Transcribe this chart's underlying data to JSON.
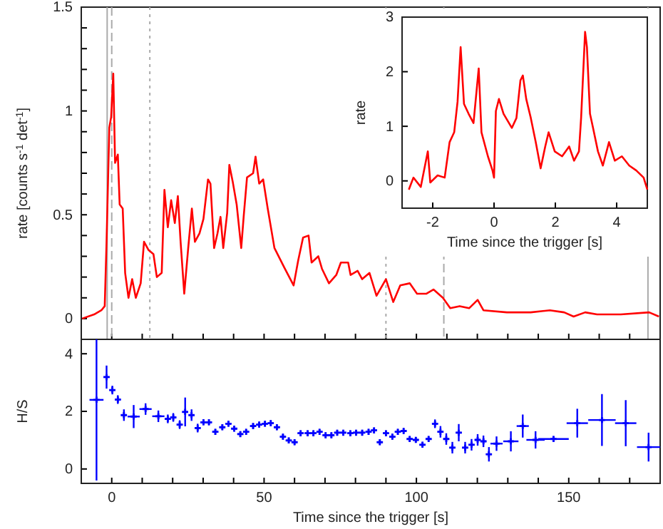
{
  "chart_data": [
    {
      "type": "line",
      "color": "#ff0000",
      "ylabel": "rate [counts s$^{-1}$ det$^{-1}$]",
      "tick_labels": "y",
      "xlim": [
        -10,
        180
      ],
      "ylim": [
        -0.1,
        1.5
      ],
      "xticks": [
        {
          "value": 0,
          "label": null
        },
        {
          "value": 10,
          "label": null
        },
        {
          "value": 20,
          "label": null
        },
        {
          "value": 30,
          "label": null
        },
        {
          "value": 40,
          "label": null
        },
        {
          "value": 50,
          "label": null
        },
        {
          "value": 60,
          "label": null
        },
        {
          "value": 70,
          "label": null
        },
        {
          "value": 80,
          "label": null
        },
        {
          "value": 90,
          "label": null
        },
        {
          "value": 100,
          "label": null
        },
        {
          "value": 110,
          "label": null
        },
        {
          "value": 120,
          "label": null
        },
        {
          "value": 130,
          "label": null
        },
        {
          "value": 140,
          "label": null
        },
        {
          "value": 150,
          "label": null
        },
        {
          "value": 160,
          "label": null
        },
        {
          "value": 170,
          "label": null
        }
      ],
      "yticks": [
        0,
        {
          "value": 0.1,
          "label": null
        },
        {
          "value": 0.2,
          "label": null
        },
        {
          "value": 0.3,
          "label": null
        },
        {
          "value": 0.4,
          "label": null
        },
        0.5,
        {
          "value": 0.6,
          "label": null
        },
        {
          "value": 0.7,
          "label": null
        },
        {
          "value": 0.8,
          "label": null
        },
        {
          "value": 0.9,
          "label": null
        },
        1,
        {
          "value": 1.1,
          "label": null
        },
        {
          "value": 1.2,
          "label": null
        },
        {
          "value": 1.3,
          "label": null
        },
        {
          "value": 1.4,
          "label": null
        },
        1.5
      ],
      "ref_lines": [
        {
          "axis": "x",
          "value": -1.5,
          "label": null,
          "color": "#aaaaaa",
          "line_style": "solid"
        },
        {
          "axis": "x",
          "value": 0,
          "label": null,
          "color": "#aaaaaa",
          "line_style": "dashed"
        },
        {
          "axis": "x",
          "value": 12.5,
          "label": null,
          "color": "#aaaaaa",
          "line_style": "dotted"
        },
        {
          "axis": "x",
          "value": 90,
          "label": null,
          "color": "#aaaaaa",
          "line_style": "dotted"
        },
        {
          "axis": "x",
          "value": 109,
          "label": null,
          "color": "#aaaaaa",
          "line_style": "dashed"
        },
        {
          "axis": "x",
          "value": 176,
          "label": null,
          "color": "#aaaaaa",
          "line_style": "solid"
        }
      ],
      "x": [
        -9.7,
        -5.8,
        -3.4,
        -2.3,
        -1.7,
        -0.8,
        -0.2,
        0.5,
        1.1,
        2.0,
        2.6,
        3.6,
        4.4,
        5.5,
        6.7,
        7.9,
        9.5,
        10.6,
        12.1,
        13.7,
        14.8,
        16.4,
        17.3,
        18.4,
        19.5,
        20.7,
        21.7,
        22.6,
        23.8,
        25.1,
        26.3,
        27.3,
        28.8,
        30.1,
        31.6,
        32.4,
        33.6,
        34.7,
        35.7,
        36.6,
        37.9,
        38.6,
        39.7,
        41.0,
        42.5,
        43.3,
        44.4,
        46.4,
        47.2,
        48.4,
        49.7,
        51.2,
        53.4,
        56.5,
        59.7,
        61.2,
        62.8,
        64.6,
        65.6,
        67.8,
        69.0,
        71.3,
        73.7,
        75.2,
        77.6,
        78.4,
        80.7,
        82.2,
        84.6,
        86.9,
        90.0,
        92.4,
        94.7,
        97.8,
        100.2,
        103.3,
        105.6,
        108.7,
        111.1,
        114.2,
        117.3,
        120.1,
        122.0,
        129.7,
        137.5,
        143.8,
        148.5,
        151.6,
        155.4,
        159.3,
        167.1,
        176.4,
        179.6
      ],
      "values": [
        0,
        0.02,
        0.04,
        0.06,
        0.37,
        0.92,
        0.97,
        1.18,
        0.75,
        0.79,
        0.55,
        0.53,
        0.22,
        0.1,
        0.19,
        0.1,
        0.17,
        0.37,
        0.33,
        0.31,
        0.2,
        0.22,
        0.62,
        0.44,
        0.57,
        0.46,
        0.59,
        0.37,
        0.12,
        0.34,
        0.53,
        0.37,
        0.41,
        0.48,
        0.67,
        0.65,
        0.34,
        0.41,
        0.49,
        0.34,
        0.51,
        0.74,
        0.66,
        0.55,
        0.34,
        0.49,
        0.68,
        0.7,
        0.78,
        0.65,
        0.67,
        0.53,
        0.34,
        0.25,
        0.16,
        0.28,
        0.39,
        0.4,
        0.27,
        0.3,
        0.24,
        0.17,
        0.21,
        0.27,
        0.27,
        0.21,
        0.23,
        0.19,
        0.22,
        0.11,
        0.19,
        0.08,
        0.16,
        0.17,
        0.12,
        0.12,
        0.14,
        0.1,
        0.05,
        0.06,
        0.05,
        0.09,
        0.04,
        0.03,
        0.03,
        0.04,
        0.03,
        0.01,
        0.03,
        0.02,
        0.02,
        0.03,
        0.01
      ]
    },
    {
      "type": "line",
      "color": "#ff0000",
      "xlabel": "Time since the trigger [s]",
      "ylabel": "rate",
      "xlim": [
        -3,
        5
      ],
      "ylim": [
        -0.5,
        3
      ],
      "xticks": [
        -2,
        0,
        2,
        4
      ],
      "yticks": [
        0,
        1,
        2,
        3
      ],
      "x": [
        -2.78,
        -2.63,
        -2.39,
        -2.16,
        -2.08,
        -1.84,
        -1.61,
        -1.45,
        -1.3,
        -1.19,
        -1.09,
        -0.98,
        -0.83,
        -0.67,
        -0.5,
        -0.41,
        -0.2,
        -0.05,
        0,
        0.06,
        0.16,
        0.31,
        0.58,
        0.73,
        0.86,
        0.94,
        1.05,
        1.2,
        1.36,
        1.52,
        1.67,
        1.78,
        1.98,
        2.22,
        2.45,
        2.61,
        2.77,
        2.84,
        2.97,
        3.03,
        3.13,
        3.23,
        3.39,
        3.55,
        3.75,
        3.94,
        4.17,
        4.41,
        4.64,
        4.88,
        5.0
      ],
      "values": [
        -0.16,
        0.06,
        -0.11,
        0.54,
        -0.03,
        0.1,
        0.06,
        0.71,
        0.89,
        1.45,
        2.45,
        1.41,
        1.23,
        1.06,
        2.06,
        0.89,
        0.45,
        0.19,
        0.06,
        1.28,
        1.5,
        1.23,
        0.97,
        1.15,
        1.84,
        1.93,
        1.5,
        1.15,
        0.71,
        0.23,
        0.63,
        0.89,
        0.54,
        0.45,
        0.63,
        0.37,
        0.54,
        1.15,
        2.73,
        2.45,
        1.23,
        0.97,
        0.54,
        0.28,
        0.71,
        0.37,
        0.45,
        0.28,
        0.19,
        0.06,
        -0.16
      ]
    },
    {
      "type": "scatter",
      "marker": "cross",
      "color": "#0000ff",
      "xlabel": "Time since the trigger [s]",
      "ylabel": "H/S",
      "xlim": [
        -10,
        180
      ],
      "ylim": [
        -0.5,
        4.5
      ],
      "xticks": [
        0,
        {
          "value": 10,
          "label": null
        },
        {
          "value": 20,
          "label": null
        },
        {
          "value": 30,
          "label": null
        },
        {
          "value": 40,
          "label": null
        },
        50,
        {
          "value": 60,
          "label": null
        },
        {
          "value": 70,
          "label": null
        },
        {
          "value": 80,
          "label": null
        },
        {
          "value": 90,
          "label": null
        },
        100,
        {
          "value": 110,
          "label": null
        },
        {
          "value": 120,
          "label": null
        },
        {
          "value": 130,
          "label": null
        },
        {
          "value": 140,
          "label": null
        },
        150,
        {
          "value": 160,
          "label": null
        },
        {
          "value": 170,
          "label": null
        }
      ],
      "yticks": [
        0,
        2,
        4
      ],
      "x": [
        -5,
        -1.7,
        0.2,
        2.0,
        4.0,
        7.2,
        11.1,
        15.3,
        18.4,
        20.2,
        22.3,
        24.1,
        26.2,
        28.2,
        30.1,
        31.9,
        34.0,
        36.3,
        38.3,
        40.2,
        42.2,
        44.1,
        46.4,
        48.4,
        50.3,
        52.2,
        54.2,
        56.2,
        58.1,
        60.0,
        62.0,
        64.3,
        66.2,
        68.2,
        70.2,
        72.1,
        74.0,
        76.0,
        78.3,
        80.2,
        82.2,
        84.3,
        86.1,
        88.0,
        90.0,
        92.1,
        93.9,
        95.8,
        97.8,
        99.8,
        102.0,
        104.0,
        106.1,
        107.9,
        109.8,
        111.8,
        113.9,
        116.0,
        118.1,
        120.1,
        122.0,
        123.8,
        126.3,
        131.0,
        134.9,
        139.1,
        145.0,
        152.8,
        160.9,
        168.7,
        176.2
      ],
      "values": [
        2.4,
        3.19,
        2.74,
        2.41,
        1.87,
        1.82,
        2.08,
        1.83,
        1.74,
        1.79,
        1.54,
        1.98,
        1.87,
        1.42,
        1.62,
        1.62,
        1.29,
        1.45,
        1.57,
        1.4,
        1.21,
        1.29,
        1.49,
        1.54,
        1.57,
        1.59,
        1.45,
        1.12,
        0.99,
        0.93,
        1.24,
        1.24,
        1.24,
        1.29,
        1.17,
        1.17,
        1.26,
        1.26,
        1.24,
        1.26,
        1.26,
        1.29,
        1.34,
        0.93,
        1.24,
        1.12,
        1.29,
        1.32,
        1.04,
        1.01,
        0.84,
        1.04,
        1.57,
        1.29,
        1.04,
        0.74,
        1.26,
        0.74,
        0.84,
        1.01,
        0.96,
        0.51,
        0.88,
        0.96,
        1.49,
        1.01,
        1.04,
        1.59,
        1.7,
        1.59,
        0.76
      ],
      "errors": [
        [
          -0.4,
          4.5
        ],
        0.4,
        0.15,
        0.15,
        0.2,
        0.4,
        0.2,
        0.2,
        0.15,
        0.15,
        0.15,
        0.5,
        0.2,
        0.15,
        0.1,
        0.1,
        0.1,
        0.1,
        0.1,
        0.1,
        0.1,
        0.1,
        0.1,
        0.1,
        0.1,
        0.1,
        0.1,
        0.1,
        0.1,
        0.1,
        0.1,
        0.1,
        0.1,
        0.1,
        0.1,
        0.1,
        0.1,
        0.1,
        0.1,
        0.1,
        0.1,
        0.1,
        0.1,
        0.1,
        0.1,
        0.1,
        0.1,
        0.1,
        0.1,
        0.1,
        0.1,
        0.1,
        0.15,
        0.2,
        0.2,
        0.2,
        0.3,
        0.2,
        0.2,
        0.2,
        0.2,
        0.25,
        0.25,
        0.35,
        0.4,
        0.3,
        0.1,
        0.5,
        0.9,
        0.8,
        0.5
      ],
      "xerrors": [
        2.3,
        1,
        1,
        1,
        1,
        2,
        2,
        2,
        1,
        1,
        1,
        1,
        1,
        1,
        1,
        1,
        1,
        1,
        1,
        1,
        1,
        1,
        1,
        1,
        1,
        1,
        1,
        1,
        1,
        1,
        1,
        1,
        1,
        1,
        1,
        1,
        1,
        1,
        1,
        1,
        1,
        1,
        1,
        1,
        1,
        1,
        1,
        1,
        1,
        1,
        1,
        1,
        1,
        1,
        1,
        1,
        1,
        1,
        1,
        1,
        1,
        1,
        2,
        2.5,
        2,
        3,
        5,
        3.5,
        4.5,
        3.5,
        3.8
      ]
    }
  ]
}
